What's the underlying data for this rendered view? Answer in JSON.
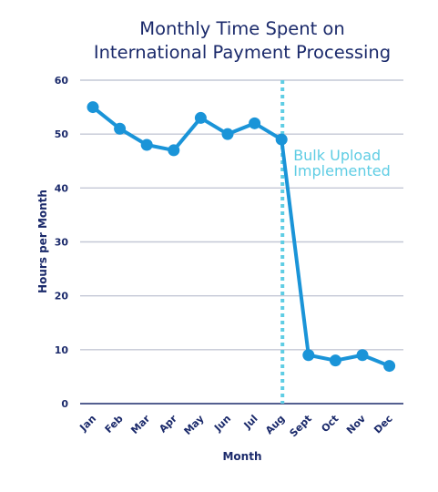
{
  "chart_data": {
    "type": "line",
    "title": [
      "Monthly Time Spent on",
      "International Payment Processing"
    ],
    "xlabel": "Month",
    "ylabel": "Hours per Month",
    "categories": [
      "Jan",
      "Feb",
      "Mar",
      "Apr",
      "May",
      "Jun",
      "Jul",
      "Aug",
      "Sept",
      "Oct",
      "Nov",
      "Dec"
    ],
    "series": [
      {
        "values": [
          55,
          51,
          48,
          47,
          53,
          50,
          52,
          49,
          9,
          8,
          9,
          7
        ]
      }
    ],
    "ylim": [
      0,
      60
    ],
    "yticks": [
      0,
      10,
      20,
      30,
      40,
      50,
      60
    ],
    "grid": true,
    "annotation": {
      "text": [
        "Bulk Upload",
        "Implemented"
      ],
      "category": "Aug"
    },
    "colors": {
      "title": "#1b2a6b",
      "grid": "#c4c8d6",
      "baseline": "#1b2a6b",
      "line": "#1a94d8",
      "annotation": "#5fcde4"
    }
  }
}
